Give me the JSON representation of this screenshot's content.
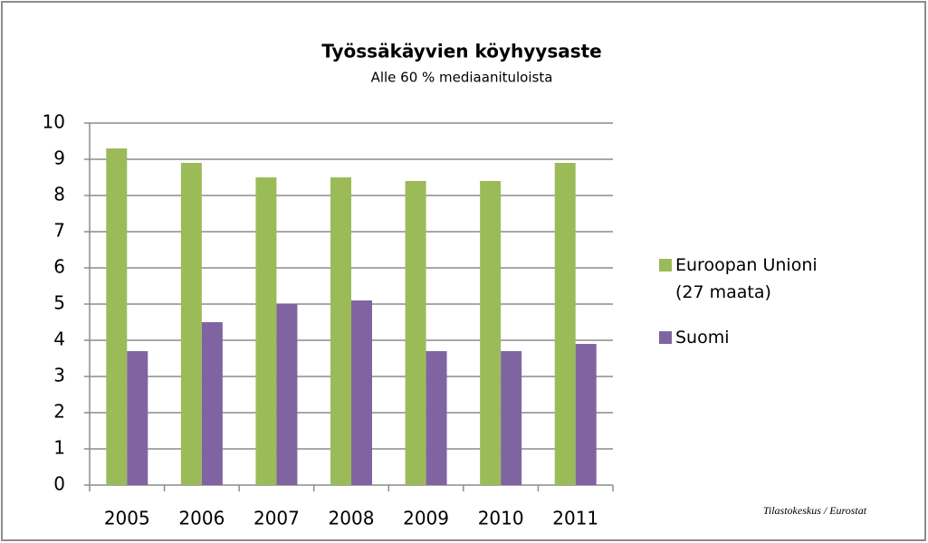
{
  "chart_data": {
    "type": "bar",
    "title": "Työssäkäyvien köyhyysaste",
    "subtitle": "Alle 60 % mediaanituloista",
    "categories": [
      "2005",
      "2006",
      "2007",
      "2008",
      "2009",
      "2010",
      "2011"
    ],
    "series": [
      {
        "name": "Euroopan Unioni (27 maata)",
        "color": "#9bbb59",
        "values": [
          9.3,
          8.9,
          8.5,
          8.5,
          8.4,
          8.4,
          8.9
        ]
      },
      {
        "name": "Suomi",
        "color": "#8064a2",
        "values": [
          3.7,
          4.5,
          5.0,
          5.1,
          3.7,
          3.7,
          3.9
        ]
      }
    ],
    "ylim": [
      0,
      10
    ],
    "yticks": [
      0,
      1,
      2,
      3,
      4,
      5,
      6,
      7,
      8,
      9,
      10
    ],
    "grid": true,
    "legend": "right",
    "source": "Tilastokeskus / Eurostat"
  }
}
